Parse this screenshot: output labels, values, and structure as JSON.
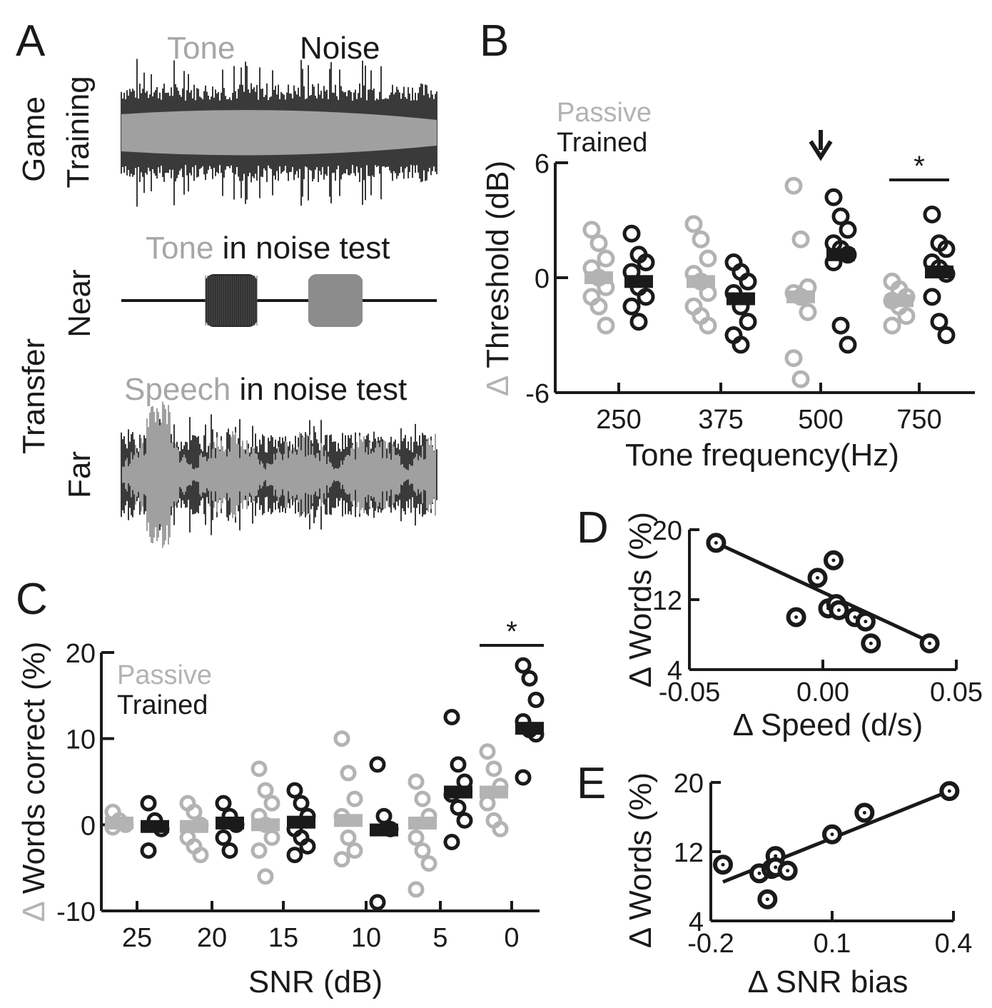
{
  "colors": {
    "passive": "#b3b3b3",
    "trained": "#1a1a1a",
    "wave_dark": "#3a3a3a",
    "wave_light": "#a0a0a0"
  },
  "panel_a": {
    "letter": "A",
    "tone_word": "Tone",
    "noise_word": "Noise",
    "game_label": "Game",
    "training_label": "Training",
    "near_title_tone": "Tone",
    "near_title_rest": " in noise test",
    "near_label": "Near",
    "transfer_label": "Transfer",
    "far_title_speech": "Speech",
    "far_title_rest": " in noise test",
    "far_label": "Far"
  },
  "chart_data": [
    {
      "panel": "B",
      "type": "scatter",
      "ylabel_delta": "Δ",
      "ylabel": "Threshold (dB)",
      "xlabel": "Tone frequency(Hz)",
      "categories": [
        "250",
        "375",
        "500",
        "750"
      ],
      "yticks": [
        "6",
        "0",
        "-6"
      ],
      "ylim": [
        -6,
        6
      ],
      "legend": [
        "Passive",
        "Trained"
      ],
      "legend_position": "top-left",
      "annotations": {
        "arrow_category": "500",
        "star": "*",
        "star_category": "750"
      },
      "series": [
        {
          "name": "Passive",
          "means": [
            0.0,
            -0.2,
            -1.0,
            -1.2
          ],
          "points": [
            [
              2.5,
              1.8,
              1.0,
              0.5,
              0.0,
              -0.5,
              -1.0,
              -1.5,
              -2.5
            ],
            [
              2.8,
              2.0,
              1.0,
              0.2,
              -0.2,
              -0.8,
              -1.5,
              -2.0,
              -2.5
            ],
            [
              4.8,
              2.0,
              -0.5,
              -0.8,
              -1.0,
              -1.8,
              -4.2,
              -5.3
            ],
            [
              -0.2,
              -0.6,
              -1.0,
              -1.2,
              -1.5,
              -2.0,
              -2.5
            ]
          ]
        },
        {
          "name": "Trained",
          "means": [
            -0.2,
            -1.1,
            1.2,
            0.3
          ],
          "points": [
            [
              2.3,
              1.2,
              0.8,
              0.3,
              -0.5,
              -1.0,
              -1.5,
              -2.3
            ],
            [
              0.8,
              0.3,
              -0.2,
              -0.8,
              -1.5,
              -2.3,
              -3.0,
              -3.5
            ],
            [
              4.2,
              3.2,
              2.5,
              1.8,
              1.5,
              1.2,
              0.8,
              -2.5,
              -3.5
            ],
            [
              3.3,
              1.8,
              1.5,
              0.8,
              0.5,
              0.2,
              -1.0,
              -2.3,
              -3.0
            ]
          ]
        }
      ]
    },
    {
      "panel": "C",
      "type": "scatter",
      "ylabel_delta": "Δ",
      "ylabel": "Words correct (%)",
      "xlabel": "SNR (dB)",
      "categories": [
        "25",
        "20",
        "15",
        "10",
        "5",
        "0"
      ],
      "yticks": [
        "20",
        "10",
        "0",
        "-10"
      ],
      "ylim": [
        -10,
        20
      ],
      "legend": [
        "Passive",
        "Trained"
      ],
      "legend_position": "top-left",
      "annotations": {
        "star": "*",
        "star_category": "0"
      },
      "series": [
        {
          "name": "Passive",
          "means": [
            0.2,
            -0.2,
            0.0,
            0.5,
            0.2,
            3.8
          ],
          "points": [
            [
              1.5,
              0.5,
              0.0,
              -0.3
            ],
            [
              2.5,
              1.5,
              0.0,
              -1.5,
              -2.5,
              -3.5
            ],
            [
              6.5,
              4.0,
              2.5,
              1.0,
              0.0,
              -1.5,
              -3.0,
              -6.0
            ],
            [
              10.0,
              6.0,
              3.0,
              1.0,
              -1.5,
              -3.0,
              -4.0
            ],
            [
              5.0,
              3.0,
              1.0,
              -1.5,
              -3.0,
              -4.5,
              -7.5
            ],
            [
              8.5,
              6.5,
              4.5,
              2.5,
              0.5,
              -0.5
            ]
          ]
        },
        {
          "name": "Trained",
          "means": [
            -0.2,
            0.2,
            0.3,
            -0.6,
            3.8,
            11.2
          ],
          "points": [
            [
              2.5,
              0.5,
              -0.5,
              -3.0
            ],
            [
              2.5,
              1.0,
              0.0,
              -1.5,
              -3.0
            ],
            [
              4.0,
              2.5,
              1.0,
              -0.5,
              -1.5,
              -2.5,
              -3.5
            ],
            [
              7.0,
              1.0,
              -0.5,
              -9.0
            ],
            [
              12.5,
              7.0,
              5.0,
              3.5,
              2.0,
              0.5,
              -2.0
            ],
            [
              18.5,
              17.0,
              14.5,
              12.0,
              11.0,
              10.5,
              5.5
            ]
          ]
        }
      ]
    },
    {
      "panel": "D",
      "type": "scatter",
      "ylabel_delta": "Δ",
      "ylabel": "Words (%)",
      "xlabel_delta": "Δ",
      "xlabel": "Speed (d/s)",
      "xticks": [
        "-0.05",
        "0.00",
        "0.05"
      ],
      "yticks": [
        "20",
        "12",
        "4"
      ],
      "xlim": [
        -0.05,
        0.05
      ],
      "ylim": [
        4,
        20
      ],
      "x": [
        -0.04,
        -0.01,
        -0.002,
        0.002,
        0.004,
        0.005,
        0.006,
        0.012,
        0.016,
        0.018,
        0.04
      ],
      "y": [
        18.5,
        10.0,
        14.5,
        11.0,
        16.5,
        11.5,
        10.8,
        10.0,
        9.5,
        7.0,
        7.0
      ],
      "fit": [
        [
          -0.04,
          18.5
        ],
        [
          0.04,
          7.2
        ]
      ]
    },
    {
      "panel": "E",
      "type": "scatter",
      "ylabel_delta": "Δ",
      "ylabel": "Words (%)",
      "xlabel_delta": "Δ",
      "xlabel": "SNR bias",
      "xticks": [
        "-0.2",
        "0.1",
        "0.4"
      ],
      "yticks": [
        "20",
        "12",
        "4"
      ],
      "xlim": [
        -0.2,
        0.4
      ],
      "ylim": [
        4,
        20
      ],
      "x": [
        -0.17,
        -0.08,
        -0.06,
        -0.05,
        -0.04,
        -0.04,
        -0.01,
        0.1,
        0.18,
        0.39
      ],
      "y": [
        10.5,
        9.5,
        6.5,
        10.0,
        11.5,
        10.2,
        9.8,
        14.0,
        16.5,
        19.0
      ],
      "fit": [
        [
          -0.17,
          8.5
        ],
        [
          0.39,
          19.0
        ]
      ]
    }
  ]
}
